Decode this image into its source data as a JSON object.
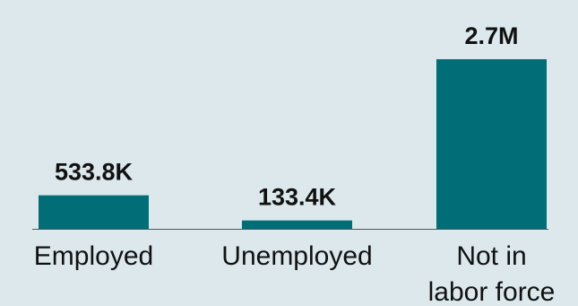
{
  "colors": {
    "background": "#dce8ec",
    "bar": "#006d77",
    "axis": "#555555",
    "text": "#111111"
  },
  "chart_data": {
    "type": "bar",
    "categories": [
      "Employed",
      "Unemployed",
      "Not in labor force"
    ],
    "category_label_lines": [
      [
        "Employed"
      ],
      [
        "Unemployed"
      ],
      [
        "Not in",
        "labor force"
      ]
    ],
    "values": [
      533800,
      133400,
      2700000
    ],
    "value_labels": [
      "533.8K",
      "133.4K",
      "2.7M"
    ],
    "title": "",
    "xlabel": "",
    "ylabel": "",
    "ylim": [
      0,
      2700000
    ],
    "grid": false,
    "legend": "none"
  }
}
